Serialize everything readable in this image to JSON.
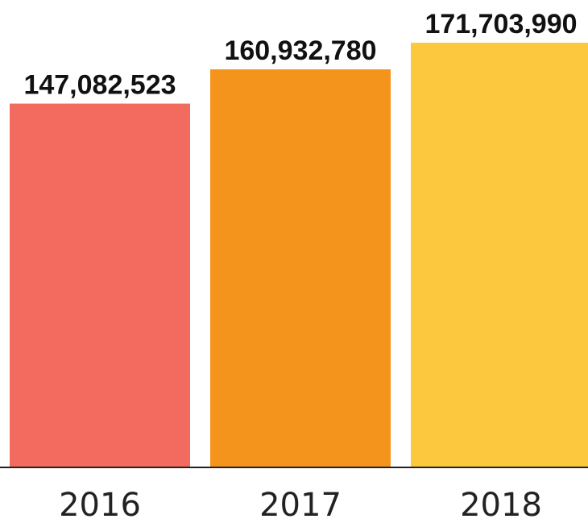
{
  "chart_data": {
    "type": "bar",
    "categories": [
      "2016",
      "2017",
      "2018"
    ],
    "values": [
      147082523,
      160932780,
      171703990
    ],
    "value_labels": [
      "147,082,523",
      "160,932,780",
      "171,703,990"
    ],
    "colors": [
      "#F26B5E",
      "#F5941D",
      "#FBC83E"
    ],
    "title": "",
    "xlabel": "",
    "ylabel": "",
    "ylim": [
      0,
      180000000
    ],
    "grid": false,
    "legend": "none"
  },
  "axis": {
    "baseline_color": "#222222"
  }
}
